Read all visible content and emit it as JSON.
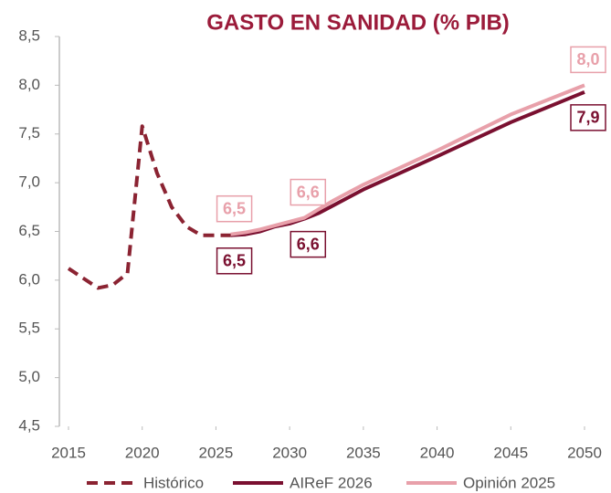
{
  "chart_data": {
    "type": "line",
    "title": "GASTO EN SANIDAD (% PIB)",
    "xlim": [
      2015,
      2050
    ],
    "xticks": [
      2015,
      2020,
      2025,
      2030,
      2035,
      2040,
      2045,
      2050
    ],
    "ylim": [
      4.5,
      8.5
    ],
    "yticks": [
      {
        "value": 4.5,
        "label": "4,5"
      },
      {
        "value": 5,
        "label": "5,0"
      },
      {
        "value": 5.5,
        "label": "5,5"
      },
      {
        "value": 6,
        "label": "6,0"
      },
      {
        "value": 6.5,
        "label": "6,5"
      },
      {
        "value": 7,
        "label": "7,0"
      },
      {
        "value": 7.5,
        "label": "7,5"
      },
      {
        "value": 8,
        "label": "8,0"
      },
      {
        "value": 8.5,
        "label": "8,5"
      }
    ],
    "series": [
      {
        "name": "Histórico",
        "color": "#8b2332",
        "dashed": true,
        "x": [
          2015,
          2016,
          2017,
          2018,
          2019,
          2020,
          2021,
          2022,
          2023,
          2024,
          2025,
          2026
        ],
        "values": [
          6.12,
          6.02,
          5.92,
          5.95,
          6.07,
          7.58,
          7.1,
          6.75,
          6.55,
          6.46,
          6.46,
          6.46
        ]
      },
      {
        "name": "AIReF 2026",
        "color": "#7a1030",
        "x": [
          2026,
          2027,
          2028,
          2029,
          2030,
          2031,
          2032,
          2033,
          2035,
          2040,
          2045,
          2050
        ],
        "values": [
          6.46,
          6.47,
          6.5,
          6.55,
          6.58,
          6.63,
          6.69,
          6.77,
          6.93,
          7.27,
          7.62,
          7.93
        ],
        "value_labels": [
          "6,5",
          null,
          null,
          null,
          null,
          "6,6",
          null,
          null,
          null,
          null,
          null,
          "7,9"
        ]
      },
      {
        "name": "Opinión 2025",
        "color": "#e8a0aa",
        "x": [
          2026,
          2027,
          2028,
          2029,
          2030,
          2031,
          2033,
          2035,
          2040,
          2045,
          2050
        ],
        "values": [
          6.47,
          6.49,
          6.52,
          6.56,
          6.6,
          6.64,
          6.82,
          6.98,
          7.33,
          7.7,
          8.0
        ],
        "value_labels": [
          "6,5",
          null,
          null,
          null,
          null,
          "6,6",
          null,
          null,
          null,
          null,
          "8,0"
        ]
      }
    ]
  }
}
